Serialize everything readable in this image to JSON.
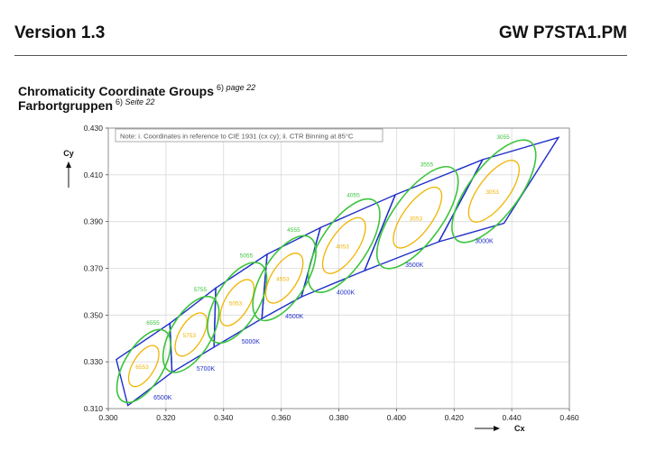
{
  "header": {
    "version": "Version 1.3",
    "doc_id": "GW P7STA1.PM"
  },
  "title": {
    "line1": "Chromaticity Coordinate Groups",
    "line1_ref": "6)",
    "line1_page": "page 22",
    "line2": "Farbortgruppen",
    "line2_ref": "6)",
    "line2_page": "Seite 22"
  },
  "colors": {
    "region": "#1f2fc8",
    "outer_ellipse": "#3cc43c",
    "inner_ellipse": "#f0b400",
    "grid": "#d9d9d9"
  },
  "chart_data": {
    "type": "scatter",
    "note": "Note: i. Coordinates in reference to CIE 1931 (cx cy); ii. CTR Binning at 85°C",
    "xlabel": "Cx",
    "ylabel": "Cy",
    "xlim": [
      0.3,
      0.46
    ],
    "ylim": [
      0.31,
      0.43
    ],
    "xticks": [
      "0.300",
      "0.320",
      "0.340",
      "0.360",
      "0.380",
      "0.400",
      "0.420",
      "0.440",
      "0.460"
    ],
    "yticks": [
      "0.310",
      "0.330",
      "0.350",
      "0.370",
      "0.390",
      "0.410",
      "0.430"
    ],
    "grid": true,
    "regions": [
      {
        "label": "6500K",
        "polygon": [
          [
            0.3028,
            0.331
          ],
          [
            0.3214,
            0.3465
          ],
          [
            0.3221,
            0.3255
          ],
          [
            0.3068,
            0.3113
          ]
        ]
      },
      {
        "label": "5700K",
        "polygon": [
          [
            0.3214,
            0.3465
          ],
          [
            0.3373,
            0.3616
          ],
          [
            0.3367,
            0.3363
          ],
          [
            0.3221,
            0.3255
          ]
        ]
      },
      {
        "label": "5000K",
        "polygon": [
          [
            0.3373,
            0.3616
          ],
          [
            0.3551,
            0.376
          ],
          [
            0.3533,
            0.3485
          ],
          [
            0.3367,
            0.3363
          ]
        ]
      },
      {
        "label": "4500K",
        "polygon": [
          [
            0.3551,
            0.376
          ],
          [
            0.3736,
            0.3874
          ],
          [
            0.367,
            0.3578
          ],
          [
            0.3533,
            0.3485
          ]
        ]
      },
      {
        "label": "4000K",
        "polygon": [
          [
            0.3736,
            0.3874
          ],
          [
            0.3996,
            0.4015
          ],
          [
            0.3889,
            0.369
          ],
          [
            0.367,
            0.3578
          ]
        ]
      },
      {
        "label": "3500K",
        "polygon": [
          [
            0.3996,
            0.4015
          ],
          [
            0.4299,
            0.4165
          ],
          [
            0.4147,
            0.3814
          ],
          [
            0.3889,
            0.369
          ]
        ]
      },
      {
        "label": "3000K",
        "polygon": [
          [
            0.4299,
            0.4165
          ],
          [
            0.4562,
            0.426
          ],
          [
            0.4373,
            0.3893
          ],
          [
            0.4147,
            0.3814
          ]
        ]
      }
    ],
    "ellipses": [
      {
        "label": "6555",
        "center": [
          0.3123,
          0.3282
        ],
        "a": 0.0067,
        "b": 0.0142,
        "angle": 59,
        "group": "outer"
      },
      {
        "label": "6553",
        "center": [
          0.3123,
          0.3282
        ],
        "a": 0.0038,
        "b": 0.008,
        "angle": 59,
        "group": "inner"
      },
      {
        "label": "5755",
        "center": [
          0.3287,
          0.3417
        ],
        "a": 0.007,
        "b": 0.0148,
        "angle": 59,
        "group": "outer"
      },
      {
        "label": "5753",
        "center": [
          0.3287,
          0.3417
        ],
        "a": 0.004,
        "b": 0.0084,
        "angle": 59,
        "group": "inner"
      },
      {
        "label": "5055",
        "center": [
          0.3447,
          0.3553
        ],
        "a": 0.0074,
        "b": 0.0157,
        "angle": 59,
        "group": "outer"
      },
      {
        "label": "5053",
        "center": [
          0.3447,
          0.3553
        ],
        "a": 0.0042,
        "b": 0.009,
        "angle": 59,
        "group": "inner"
      },
      {
        "label": "4555",
        "center": [
          0.3611,
          0.3658
        ],
        "a": 0.0076,
        "b": 0.0167,
        "angle": 58,
        "group": "outer"
      },
      {
        "label": "4553",
        "center": [
          0.3611,
          0.3658
        ],
        "a": 0.0045,
        "b": 0.0098,
        "angle": 58,
        "group": "inner"
      },
      {
        "label": "4055",
        "center": [
          0.3818,
          0.3797
        ],
        "a": 0.008,
        "b": 0.0188,
        "angle": 56,
        "group": "outer"
      },
      {
        "label": "4053",
        "center": [
          0.3818,
          0.3797
        ],
        "a": 0.0048,
        "b": 0.0112,
        "angle": 56,
        "group": "inner"
      },
      {
        "label": "3555",
        "center": [
          0.4073,
          0.3917
        ],
        "a": 0.0084,
        "b": 0.021,
        "angle": 54,
        "group": "outer"
      },
      {
        "label": "3553",
        "center": [
          0.4073,
          0.3917
        ],
        "a": 0.005,
        "b": 0.0125,
        "angle": 54,
        "group": "inner"
      },
      {
        "label": "3055",
        "center": [
          0.4338,
          0.403
        ],
        "a": 0.0086,
        "b": 0.0213,
        "angle": 53,
        "group": "outer"
      },
      {
        "label": "3053",
        "center": [
          0.4338,
          0.403
        ],
        "a": 0.0052,
        "b": 0.0128,
        "angle": 53,
        "group": "inner"
      }
    ]
  }
}
